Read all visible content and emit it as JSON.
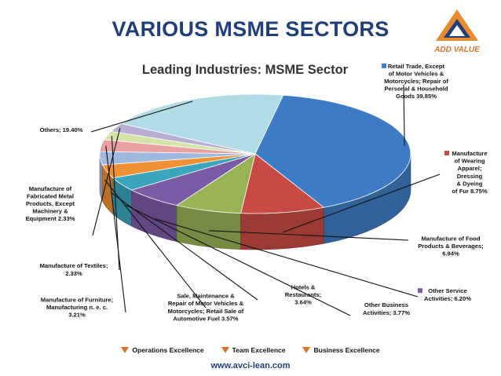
{
  "slide_title": "VARIOUS MSME SECTORS",
  "logo": {
    "text": "ADD VALUE"
  },
  "colors": {
    "title": "#1f3f7a",
    "accent": "#d9752b"
  },
  "chart_data": {
    "type": "pie",
    "title": "Leading Industries: MSME Sector",
    "series": [
      {
        "label": "Retail Trade, Except of Motor Vehicles & Motorcycles; Repair of Personal & Household Goods",
        "value": 39.85,
        "color": "#3d7cc4",
        "label_text": [
          "Retail Trade, Except",
          "of Motor Vehicles &",
          "Motorcycles; Repair of",
          "Personal & Household",
          "Goods  39.85%"
        ]
      },
      {
        "label": "Manufacture of Wearing Apparel; Dressing & Dyeing of Fur",
        "value": 8.75,
        "color": "#c84a45",
        "label_text": [
          "Manufacture",
          "of Wearing",
          "Apparel;",
          "Dressing",
          "& Dyeing",
          "of Fur 8.75%"
        ]
      },
      {
        "label": "Manufacture of Food Products & Beverages",
        "value": 6.94,
        "color": "#97b355",
        "label_text": [
          "Manufacture of Food",
          "Products & Beverages;",
          "6.94%"
        ]
      },
      {
        "label": "Other Service Activities",
        "value": 6.2,
        "color": "#7c5ba6",
        "label_text": [
          "Other Service",
          "Activities; 6.20%"
        ]
      },
      {
        "label": "Other Business Activities",
        "value": 3.77,
        "color": "#3aa5bd",
        "label_text": [
          "Other Business",
          "Activities; 3.77%"
        ]
      },
      {
        "label": "Hotels & Restaurants",
        "value": 3.64,
        "color": "#f09035",
        "label_text": [
          "Hotels &",
          "Restaurants;",
          "3.64%"
        ]
      },
      {
        "label": "Sale, Maintenance & Repair of Motor Vehicles & Motorcycles; Retail Sale of Automotive Fuel",
        "value": 3.57,
        "color": "#9fb8de",
        "label_text": [
          "Sale, Maintenance &",
          "Repair of Motor Vehicles &",
          "Motorcycles; Retail Sale of",
          "Automotive Fuel 3.57%"
        ]
      },
      {
        "label": "Manufacturing n. e. c.",
        "value": 3.21,
        "color": "#e8a0a0",
        "label_text": [
          "Manufacture of Furniture;",
          "Manufacturing n. e. c.",
          "3.21%"
        ]
      },
      {
        "label": "Manufacture of Textiles",
        "value": 2.33,
        "color": "#d5e3a8",
        "label_text": [
          "Manufacture of Textiles;",
          "2.33%"
        ]
      },
      {
        "label": "Manufacture of Fabricated Metal Products, Except Machinery & Equipment",
        "value": 2.33,
        "color": "#b9aed2",
        "label_text": [
          "Manufacture of",
          "Fabricated Metal",
          "Products, Except",
          "Machinery &",
          "Equipment 2.33%"
        ]
      },
      {
        "label": "Others",
        "value": 19.4,
        "color": "#b1dbe5",
        "label_text": [
          "Others; 19.40%"
        ]
      }
    ]
  },
  "footer": {
    "items": [
      "Operations Excellence",
      "Team Excellence",
      "Business Excellence"
    ],
    "website": "www.avci-lean.com"
  }
}
